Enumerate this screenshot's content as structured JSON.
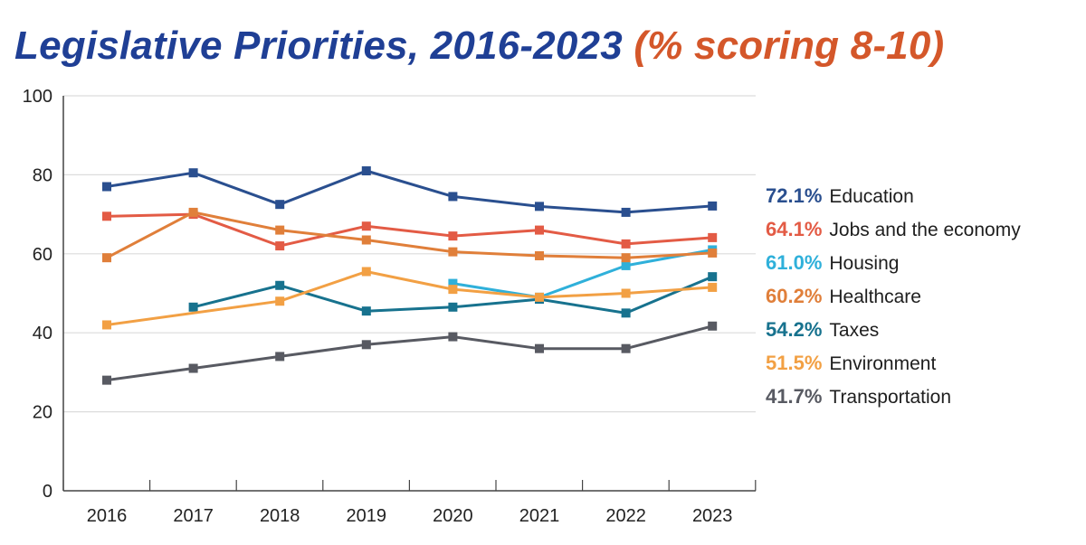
{
  "title": {
    "main": "Legislative Priorities, 2016-2023",
    "sub": "(% scoring 8-10)"
  },
  "colors": {
    "title_main": "#1f3f95",
    "title_sub": "#d4572a",
    "grid": "#dcdcdc",
    "axis": "#444444"
  },
  "legend_items": [
    {
      "value": "72.1%",
      "label": "Education",
      "color": "#2a4f8f"
    },
    {
      "value": "64.1%",
      "label": "Jobs and the economy",
      "color": "#e35b45"
    },
    {
      "value": "61.0%",
      "label": "Housing",
      "color": "#2fb0da"
    },
    {
      "value": "60.2%",
      "label": "Healthcare",
      "color": "#e07f3a"
    },
    {
      "value": "54.2%",
      "label": "Taxes",
      "color": "#17728e"
    },
    {
      "value": "51.5%",
      "label": "Environment",
      "color": "#f2a044"
    },
    {
      "value": "41.7%",
      "label": "Transportation",
      "color": "#585a62"
    }
  ],
  "chart_data": {
    "type": "line",
    "categories": [
      "2016",
      "2017",
      "2018",
      "2019",
      "2020",
      "2021",
      "2022",
      "2023"
    ],
    "ylim": [
      0,
      100
    ],
    "yticks": [
      0,
      20,
      40,
      60,
      80,
      100
    ],
    "grid": true,
    "legend_position": "right",
    "series": [
      {
        "name": "Education",
        "color": "#2a4f8f",
        "values": [
          77,
          80.5,
          72.5,
          81,
          74.5,
          72,
          70.5,
          72.1
        ]
      },
      {
        "name": "Jobs and the economy",
        "color": "#e35b45",
        "values": [
          69.5,
          70,
          62,
          67,
          64.5,
          66,
          62.5,
          64.1
        ]
      },
      {
        "name": "Housing",
        "color": "#2fb0da",
        "values": [
          null,
          null,
          null,
          null,
          52.5,
          49,
          57,
          61.0
        ]
      },
      {
        "name": "Healthcare",
        "color": "#e07f3a",
        "values": [
          59,
          70.5,
          66,
          63.5,
          60.5,
          59.5,
          59,
          60.2
        ]
      },
      {
        "name": "Taxes",
        "color": "#17728e",
        "values": [
          null,
          46.5,
          52,
          45.5,
          46.5,
          48.5,
          45,
          54.2
        ]
      },
      {
        "name": "Environment",
        "color": "#f2a044",
        "values": [
          42,
          null,
          48,
          55.5,
          51,
          49,
          50,
          51.5
        ]
      },
      {
        "name": "Transportation",
        "color": "#585a62",
        "values": [
          28,
          31,
          34,
          37,
          39,
          36,
          36,
          41.7
        ]
      }
    ]
  }
}
